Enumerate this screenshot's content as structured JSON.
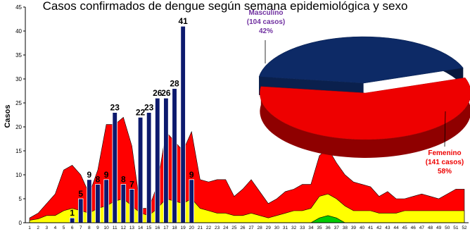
{
  "header": {
    "title": "Casos confirmados de dengue según semana epidemiológica y sexo"
  },
  "chart_data": [
    {
      "type": "bar",
      "ylabel": "Casos",
      "xlabel": "",
      "ylim": [
        0,
        45
      ],
      "yticks": [
        0,
        5,
        10,
        15,
        20,
        25,
        30,
        35,
        40,
        45
      ],
      "weeks": [
        1,
        2,
        3,
        4,
        5,
        6,
        7,
        8,
        9,
        10,
        11,
        12,
        13,
        14,
        15,
        16,
        17,
        18,
        19,
        20,
        21,
        22,
        23,
        24,
        25,
        26,
        27,
        28,
        29,
        30,
        31,
        32,
        33,
        34,
        35,
        36,
        37,
        38,
        39,
        40,
        41,
        42,
        43,
        44,
        45,
        46,
        47,
        48,
        49,
        50,
        51,
        52
      ],
      "bars": {
        "weeks": [
          6,
          7,
          8,
          9,
          10,
          11,
          12,
          13,
          14,
          15,
          16,
          17,
          18,
          19,
          20
        ],
        "values": [
          1,
          5,
          9,
          8,
          9,
          23,
          8,
          7,
          22,
          23,
          26,
          26,
          28,
          41,
          9
        ],
        "color": "#0d1a6e"
      },
      "area_layers": [
        {
          "color": "#ff0000",
          "values": [
            1,
            2,
            4,
            6,
            11,
            12,
            10,
            6,
            11,
            20.5,
            20.5,
            22,
            16,
            3,
            3,
            8,
            19,
            17,
            15,
            19,
            9,
            8.5,
            9,
            9,
            5.5,
            7,
            9,
            6.5,
            4,
            5,
            6.5,
            7,
            8,
            8,
            14,
            15.5,
            12.5,
            10,
            8.5,
            8,
            7.5,
            5.5,
            6.5,
            5,
            5,
            5.5,
            6,
            5.5,
            5,
            6,
            7,
            7
          ]
        },
        {
          "color": "#ffff00",
          "values": [
            0.5,
            0.8,
            1.5,
            1.5,
            2.5,
            3,
            2.5,
            2,
            3,
            3.5,
            4.5,
            5,
            3.5,
            2,
            1.5,
            3,
            5,
            4.5,
            4,
            5,
            3,
            2.5,
            2,
            2,
            1.5,
            1.5,
            2,
            1.5,
            1,
            1.5,
            2,
            2.5,
            2.5,
            3,
            5.5,
            6,
            5,
            3.5,
            2.5,
            2.5,
            2.5,
            2,
            2,
            2,
            2.5,
            2.5,
            2.5,
            2.5,
            2.5,
            2.5,
            2.5,
            2.5
          ]
        },
        {
          "color": "#00cc00",
          "values": [
            0,
            0,
            0,
            0,
            0,
            0,
            0,
            0,
            0,
            0,
            0,
            0,
            0,
            0,
            0,
            0,
            0,
            0,
            0,
            0,
            0,
            0,
            0,
            0,
            0,
            0,
            0,
            0,
            0,
            0,
            0,
            0,
            0,
            0,
            1,
            1.5,
            1,
            0,
            0,
            0,
            0,
            0,
            0,
            0,
            0,
            0,
            0,
            0,
            0,
            0,
            0,
            0
          ]
        }
      ],
      "grid": false
    },
    {
      "type": "pie",
      "slices": [
        {
          "name": "Masculino",
          "cases_label": "(104 casos)",
          "value": 104,
          "percent_label": "42%",
          "color": "#0d2a66",
          "label_color": "#7030a0"
        },
        {
          "name": "Femenino",
          "cases_label": "(141 casos)",
          "value": 141,
          "percent_label": "58%",
          "color": "#ee0000",
          "label_color": "#ee0000"
        }
      ]
    }
  ]
}
